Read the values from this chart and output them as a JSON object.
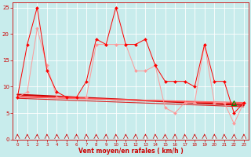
{
  "xlabel": "Vent moyen/en rafales ( km/h )",
  "background_color": "#c8ecec",
  "grid_color": "#ffffff",
  "xlim": [
    -0.5,
    23.5
  ],
  "ylim": [
    0,
    26
  ],
  "yticks": [
    0,
    5,
    10,
    15,
    20,
    25
  ],
  "xticks": [
    0,
    1,
    2,
    3,
    4,
    5,
    6,
    7,
    8,
    9,
    10,
    11,
    12,
    13,
    14,
    15,
    16,
    17,
    18,
    19,
    20,
    21,
    22,
    23
  ],
  "line1_x": [
    0,
    1,
    2,
    3,
    4,
    5,
    6,
    7,
    8,
    9,
    10,
    11,
    12,
    13,
    14,
    15,
    16,
    17,
    18,
    19,
    20,
    21,
    22,
    23
  ],
  "line1_y": [
    8,
    18,
    25,
    13,
    9,
    8,
    8,
    11,
    19,
    18,
    25,
    18,
    18,
    19,
    14,
    11,
    11,
    11,
    10,
    18,
    11,
    11,
    5,
    7
  ],
  "line1_color": "#ff0000",
  "line2_x": [
    0,
    1,
    2,
    3,
    4,
    5,
    6,
    7,
    8,
    9,
    10,
    11,
    12,
    13,
    14,
    15,
    16,
    17,
    18,
    19,
    20,
    21,
    22,
    23
  ],
  "line2_y": [
    8,
    9,
    21,
    14,
    8,
    8,
    8,
    8,
    18,
    18,
    18,
    18,
    13,
    13,
    14,
    6,
    5,
    7,
    7,
    18,
    7,
    7,
    3,
    7
  ],
  "line2_color": "#ff9999",
  "trend1_x": [
    0,
    23
  ],
  "trend1_y": [
    8.5,
    6.5
  ],
  "trend1_color": "#cc0000",
  "trend1_lw": 1.5,
  "trend2_x": [
    0,
    23
  ],
  "trend2_y": [
    8.2,
    6.8
  ],
  "trend2_color": "#ff4444",
  "trend2_lw": 1.0,
  "trend3_x": [
    0,
    23
  ],
  "trend3_y": [
    8.0,
    7.0
  ],
  "trend3_color": "#ff6666",
  "trend3_lw": 0.8,
  "trend4_x": [
    0,
    23
  ],
  "trend4_y": [
    7.8,
    6.2
  ],
  "trend4_color": "#dd2222",
  "trend4_lw": 0.8,
  "wind_dir_x": [
    0,
    1,
    2,
    3,
    4,
    5,
    6,
    7,
    8,
    9,
    10,
    11,
    12,
    13,
    14,
    15,
    16,
    17,
    18,
    19,
    20,
    21,
    22,
    23
  ],
  "wind_dir_y": [
    0.6,
    0.6,
    0.6,
    0.6,
    0.6,
    0.6,
    0.6,
    0.6,
    0.6,
    0.6,
    0.6,
    0.6,
    0.6,
    0.6,
    0.6,
    0.6,
    0.6,
    0.6,
    0.6,
    0.6,
    0.6,
    0.6,
    0.6,
    0.6
  ],
  "wind_dir_color": "#cc0000",
  "triangle_x": [
    22
  ],
  "triangle_y": [
    7
  ],
  "triangle_color": "#008800"
}
